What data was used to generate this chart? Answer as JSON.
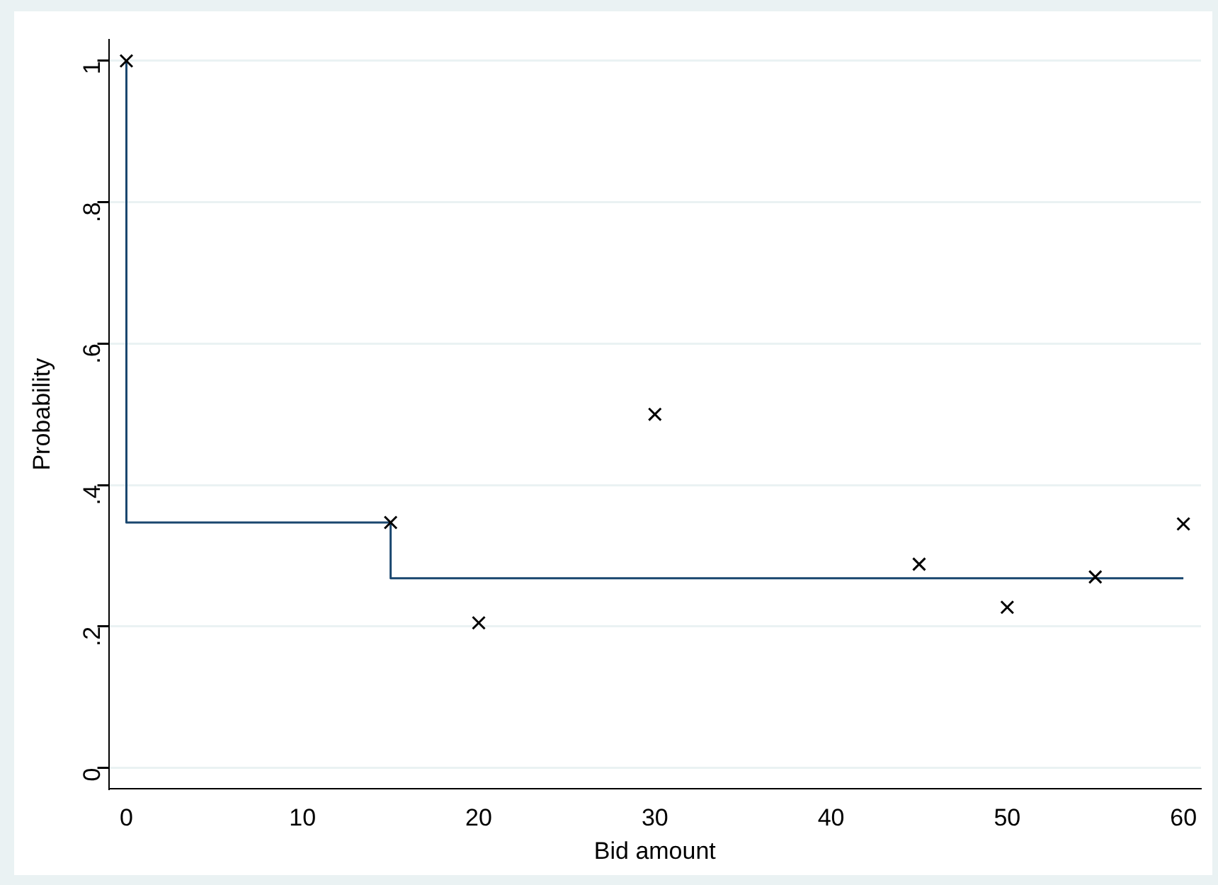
{
  "chart_data": {
    "type": "scatter",
    "xlabel": "Bid amount",
    "ylabel": "Probability",
    "xlim": [
      -1,
      61
    ],
    "xticks": [
      0,
      10,
      20,
      30,
      40,
      50,
      60
    ],
    "ylim": [
      -0.03,
      1.03
    ],
    "yticks": [
      0,
      {
        "value": 0.2,
        "label": ".2"
      },
      {
        "value": 0.4,
        "label": ".4"
      },
      {
        "value": 0.6,
        "label": ".6"
      },
      {
        "value": 0.8,
        "label": ".8"
      },
      1
    ],
    "grid": "y",
    "legend": false,
    "series": [
      {
        "color": "#000000",
        "marker": "cross",
        "x": [
          0,
          15,
          20,
          30,
          45,
          50,
          55,
          60
        ],
        "values": [
          1,
          0.347,
          0.205,
          0.5,
          0.288,
          0.227,
          0.27,
          0.345
        ]
      },
      {
        "type": "step",
        "color": "#1a476f",
        "x": [
          0,
          0,
          15,
          60
        ],
        "values": [
          1,
          0.347,
          0.268,
          0.268
        ]
      }
    ]
  }
}
